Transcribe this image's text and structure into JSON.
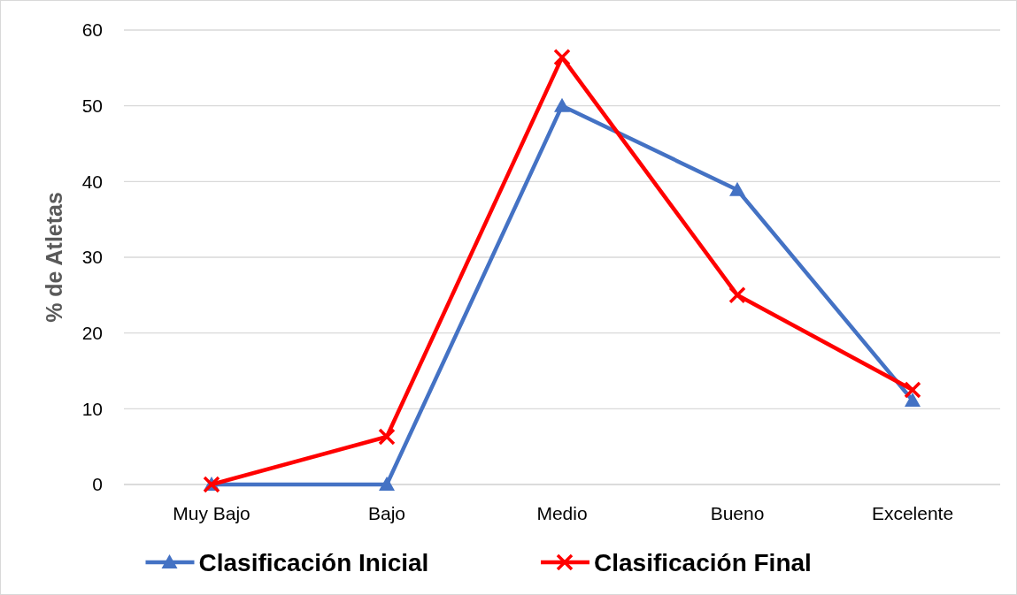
{
  "chart_data": {
    "type": "line",
    "ylabel": "% de Atletas",
    "categories": [
      "Muy Bajo",
      "Bajo",
      "Medio",
      "Bueno",
      "Excelente"
    ],
    "series": [
      {
        "name": "Clasificación Inicial",
        "color": "#4472c4",
        "values": [
          0,
          0,
          50,
          38.9,
          11.1
        ],
        "marker": "triangle"
      },
      {
        "name": "Clasificación Final",
        "color": "#ff0000",
        "values": [
          0,
          6.3,
          56.4,
          25,
          12.5
        ],
        "marker": "cross"
      }
    ],
    "ylim": [
      0,
      60
    ],
    "yticks": [
      0,
      10,
      20,
      30,
      40,
      50,
      60
    ],
    "grid": "y",
    "legend": "bottom",
    "line_style": "solid"
  }
}
